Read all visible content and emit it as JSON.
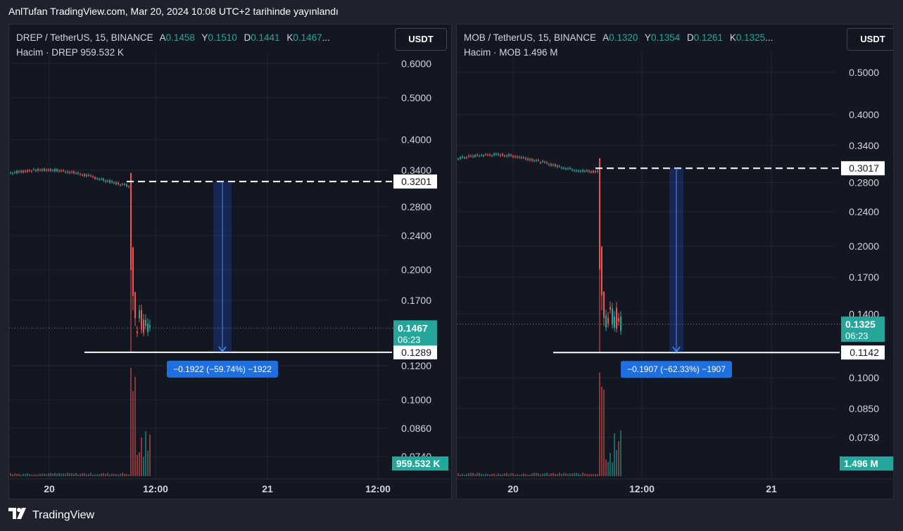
{
  "header": {
    "publisher_line": "AnlTufan TradingView.com, Mar 20, 2024 10:08 UTC+2 tarihinde yayınlandı"
  },
  "footer": {
    "brand": "TradingView",
    "logo_icon": "tradingview-logo-icon"
  },
  "colors": {
    "bg": "#131722",
    "up": "#26a69a",
    "down": "#ef5350",
    "measure": "#2962ff",
    "grid": "#1f2433"
  },
  "chart_data": [
    {
      "type": "candlestick",
      "symbol": "DREP / TetherUS, 15, BINANCE",
      "ohlc": {
        "A_label": "A",
        "A": "0.1458",
        "Y_label": "Y",
        "Y": "0.1510",
        "D_label": "D",
        "D": "0.1441",
        "K_label": "K",
        "K": "0.1467",
        "more": "..."
      },
      "volume_label": "Hacim · DREP",
      "volume_value": "959.532 K",
      "currency": "USDT",
      "scale": "log",
      "y_ticks": [
        "0.6000",
        "0.5000",
        "0.4000",
        "0.3400",
        "0.2800",
        "0.2400",
        "0.2000",
        "0.1700",
        "0.1200",
        "0.1000",
        "0.0860",
        "0.0740"
      ],
      "x_ticks": [
        "20",
        "12:00",
        "21",
        "12:00"
      ],
      "levels": [
        {
          "price": 0.3201,
          "label": "0.3201",
          "style": "dashed"
        },
        {
          "price": 0.1289,
          "label": "0.1289",
          "style": "solid"
        }
      ],
      "last_price": {
        "price": 0.1467,
        "label": "0.1467",
        "countdown": "06:23"
      },
      "volume_badge": "959.532 K",
      "measure_label": "−0.1922 (−59.74%) −1922",
      "pre_drop_price": 0.335,
      "drop_low": 0.1289,
      "post_drop_range": [
        0.142,
        0.165
      ]
    },
    {
      "type": "candlestick",
      "symbol": "MOB / TetherUS, 15, BINANCE",
      "ohlc": {
        "A_label": "A",
        "A": "0.1320",
        "Y_label": "Y",
        "Y": "0.1354",
        "D_label": "D",
        "D": "0.1261",
        "K_label": "K",
        "K": "0.1325",
        "more": "..."
      },
      "volume_label": "Hacim · MOB",
      "volume_value": "1.496 M",
      "currency": "USDT",
      "scale": "log",
      "y_ticks": [
        "0.5000",
        "0.4000",
        "0.3400",
        "0.2800",
        "0.2400",
        "0.2000",
        "0.1700",
        "0.1400",
        "0.1000",
        "0.0850",
        "0.0730"
      ],
      "x_ticks": [
        "20",
        "12:00",
        "21"
      ],
      "levels": [
        {
          "price": 0.3017,
          "label": "0.3017",
          "style": "dashed"
        },
        {
          "price": 0.1142,
          "label": "0.1142",
          "style": "solid"
        }
      ],
      "last_price": {
        "price": 0.1325,
        "label": "0.1325",
        "countdown": "06:23"
      },
      "volume_badge": "1.496 M",
      "measure_label": "−0.1907 (−62.33%) −1907",
      "pre_drop_price": 0.318,
      "drop_low": 0.1142,
      "post_drop_range": [
        0.128,
        0.15
      ]
    }
  ]
}
